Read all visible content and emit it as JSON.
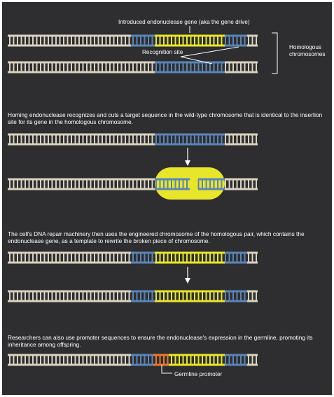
{
  "colors": {
    "background": "#2e2e30",
    "strand": "#d9d2c0",
    "rung": "#d9d2c0",
    "recognition_site": "#5b85b8",
    "gene_drive": "#e8e62a",
    "germline_promoter": "#ea7a2b",
    "text": "#ffffff"
  },
  "labels": {
    "gene_drive": "Introduced endonuclease gene (aka the gene drive)",
    "recognition_site": "Recognition site",
    "homologous": "Homologous chromosomes",
    "germline_promoter": "Germline promoter"
  },
  "captions": {
    "step1": "Homing endonuclease recognizes and cuts a target sequence in the wild-type chromosome that is identical to the insertion site for its gene in the homologous chromosome.",
    "step2": "The cell's DNA repair machinery then uses the engineered chromosome of the homologous pair, which contains the endonuclease gene, as a template to rewrite the broken piece of chromosome.",
    "step3": "Researchers can also use promoter sequences to ensure the endonuclease's expression in the germline, promoting its inheritance among offspring."
  },
  "icons": [
    "down-arrow-icon",
    "bracket-icon",
    "endonuclease-blob-icon"
  ]
}
